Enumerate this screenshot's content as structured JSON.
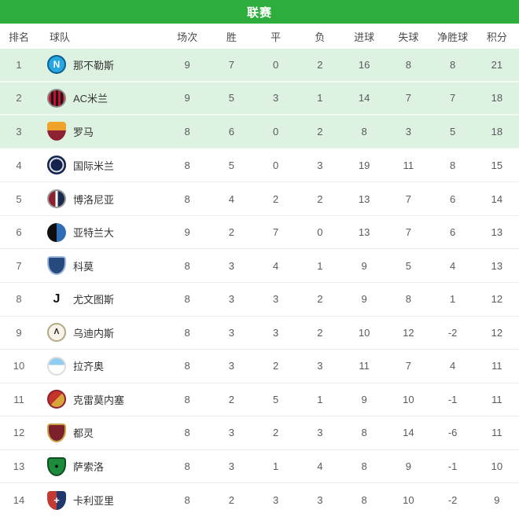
{
  "header": {
    "title": "联赛",
    "bg_color": "#2dae3c",
    "text_color": "#ffffff"
  },
  "table": {
    "columns": [
      {
        "key": "rank",
        "label": "排名"
      },
      {
        "key": "team",
        "label": "球队"
      },
      {
        "key": "played",
        "label": "场次"
      },
      {
        "key": "win",
        "label": "胜"
      },
      {
        "key": "draw",
        "label": "平"
      },
      {
        "key": "loss",
        "label": "负"
      },
      {
        "key": "gf",
        "label": "进球"
      },
      {
        "key": "ga",
        "label": "失球"
      },
      {
        "key": "gd",
        "label": "净胜球"
      },
      {
        "key": "pts",
        "label": "积分"
      }
    ],
    "highlight_bg": "#ddf2e0",
    "rows": [
      {
        "rank": 1,
        "team": "那不勒斯",
        "highlight": true,
        "badge": {
          "icon_name": "napoli-badge-icon",
          "shape": "circle",
          "fill": "solid",
          "colors": [
            "#27a7e0",
            "#0d5d93"
          ],
          "border": "#0d5d93",
          "glyph": "N",
          "glyph_color": "#ffffff",
          "glyph_size": 12
        },
        "stats": {
          "played": 9,
          "win": 7,
          "draw": 0,
          "loss": 2,
          "gf": 16,
          "ga": 8,
          "gd": 8,
          "pts": 21
        }
      },
      {
        "rank": 2,
        "team": "AC米兰",
        "highlight": true,
        "badge": {
          "icon_name": "ac-milan-badge-icon",
          "shape": "circle",
          "fill": "stripes",
          "colors": [
            "#c8102e",
            "#1a1a1a"
          ],
          "border": "#8a8a8a",
          "glyph": "",
          "glyph_color": "",
          "glyph_size": 0
        },
        "stats": {
          "played": 9,
          "win": 5,
          "draw": 3,
          "loss": 1,
          "gf": 14,
          "ga": 7,
          "gd": 7,
          "pts": 18
        }
      },
      {
        "rank": 3,
        "team": "罗马",
        "highlight": true,
        "badge": {
          "icon_name": "roma-badge-icon",
          "shape": "shield",
          "fill": "grad",
          "colors": [
            "#efa32b",
            "#8e2234"
          ],
          "border": "",
          "glyph": "",
          "glyph_color": "",
          "glyph_size": 0
        },
        "stats": {
          "played": 8,
          "win": 6,
          "draw": 0,
          "loss": 2,
          "gf": 8,
          "ga": 3,
          "gd": 5,
          "pts": 18
        }
      },
      {
        "rank": 4,
        "team": "国际米兰",
        "highlight": false,
        "badge": {
          "icon_name": "inter-milan-badge-icon",
          "shape": "circle",
          "fill": "solid",
          "colors": [
            "#16234d",
            "#16234d"
          ],
          "border": "",
          "ring": "#d8dde6",
          "glyph": "",
          "glyph_color": "",
          "glyph_size": 0
        },
        "stats": {
          "played": 8,
          "win": 5,
          "draw": 0,
          "loss": 3,
          "gf": 19,
          "ga": 11,
          "gd": 8,
          "pts": 15
        }
      },
      {
        "rank": 5,
        "team": "博洛尼亚",
        "highlight": false,
        "badge": {
          "icon_name": "bologna-badge-icon",
          "shape": "circle",
          "fill": "halves",
          "colors": [
            "#8c2030",
            "#1b2b4d"
          ],
          "mid": "#ffffff",
          "border": "#9a9a9a",
          "glyph": "",
          "glyph_color": "",
          "glyph_size": 0
        },
        "stats": {
          "played": 8,
          "win": 4,
          "draw": 2,
          "loss": 2,
          "gf": 13,
          "ga": 7,
          "gd": 6,
          "pts": 14
        }
      },
      {
        "rank": 6,
        "team": "亚特兰大",
        "highlight": false,
        "badge": {
          "icon_name": "atalanta-badge-icon",
          "shape": "circle",
          "fill": "halves",
          "colors": [
            "#0e0e0e",
            "#2f6db6"
          ],
          "border": "",
          "glyph": "",
          "glyph_color": "",
          "glyph_size": 0
        },
        "stats": {
          "played": 9,
          "win": 2,
          "draw": 7,
          "loss": 0,
          "gf": 13,
          "ga": 7,
          "gd": 6,
          "pts": 13
        }
      },
      {
        "rank": 7,
        "team": "科莫",
        "highlight": false,
        "badge": {
          "icon_name": "como-badge-icon",
          "shape": "shield",
          "fill": "solid",
          "colors": [
            "#274a7e",
            "#274a7e"
          ],
          "border": "#9db8d8",
          "glyph": "",
          "glyph_color": "",
          "glyph_size": 0
        },
        "stats": {
          "played": 8,
          "win": 3,
          "draw": 4,
          "loss": 1,
          "gf": 9,
          "ga": 5,
          "gd": 4,
          "pts": 13
        }
      },
      {
        "rank": 8,
        "team": "尤文图斯",
        "highlight": false,
        "badge": {
          "icon_name": "juventus-badge-icon",
          "shape": "circle",
          "fill": "solid",
          "colors": [
            "#ffffff",
            "#ffffff"
          ],
          "border": "",
          "glyph": "J",
          "glyph_color": "#141414",
          "glyph_size": 16
        },
        "stats": {
          "played": 8,
          "win": 3,
          "draw": 3,
          "loss": 2,
          "gf": 9,
          "ga": 8,
          "gd": 1,
          "pts": 12
        }
      },
      {
        "rank": 9,
        "team": "乌迪内斯",
        "highlight": false,
        "badge": {
          "icon_name": "udinese-badge-icon",
          "shape": "circle",
          "fill": "solid",
          "colors": [
            "#f7f3e9",
            "#f7f3e9"
          ],
          "border": "#b3a784",
          "glyph": "Λ",
          "glyph_color": "#1a1a1a",
          "glyph_size": 10
        },
        "stats": {
          "played": 8,
          "win": 3,
          "draw": 3,
          "loss": 2,
          "gf": 10,
          "ga": 12,
          "gd": -2,
          "pts": 12
        }
      },
      {
        "rank": 10,
        "team": "拉齐奥",
        "highlight": false,
        "badge": {
          "icon_name": "lazio-badge-icon",
          "shape": "circle",
          "fill": "top",
          "colors": [
            "#ffffff",
            "#8fcdf0"
          ],
          "border": "#dcdcdc",
          "glyph": "",
          "glyph_color": "",
          "glyph_size": 0
        },
        "stats": {
          "played": 8,
          "win": 3,
          "draw": 2,
          "loss": 3,
          "gf": 11,
          "ga": 7,
          "gd": 4,
          "pts": 11
        }
      },
      {
        "rank": 11,
        "team": "克雷莫内塞",
        "highlight": false,
        "badge": {
          "icon_name": "cremonese-badge-icon",
          "shape": "circle",
          "fill": "diagonal",
          "colors": [
            "#c5342c",
            "#d8a43c"
          ],
          "border": "#8c2030",
          "glyph": "",
          "glyph_color": "",
          "glyph_size": 0
        },
        "stats": {
          "played": 8,
          "win": 2,
          "draw": 5,
          "loss": 1,
          "gf": 9,
          "ga": 10,
          "gd": -1,
          "pts": 11
        }
      },
      {
        "rank": 12,
        "team": "都灵",
        "highlight": false,
        "badge": {
          "icon_name": "torino-badge-icon",
          "shape": "shield",
          "fill": "solid",
          "colors": [
            "#7c202e",
            "#7c202e"
          ],
          "border": "#c9a54a",
          "glyph": "",
          "glyph_color": "",
          "glyph_size": 0
        },
        "stats": {
          "played": 8,
          "win": 3,
          "draw": 2,
          "loss": 3,
          "gf": 8,
          "ga": 14,
          "gd": -6,
          "pts": 11
        }
      },
      {
        "rank": 13,
        "team": "萨索洛",
        "highlight": false,
        "badge": {
          "icon_name": "sassuolo-badge-icon",
          "shape": "shield",
          "fill": "solid",
          "colors": [
            "#1d8a3c",
            "#1d8a3c"
          ],
          "border": "#114f22",
          "glyph": "●",
          "glyph_color": "#0c0c0c",
          "glyph_size": 9
        },
        "stats": {
          "played": 8,
          "win": 3,
          "draw": 1,
          "loss": 4,
          "gf": 8,
          "ga": 9,
          "gd": -1,
          "pts": 10
        }
      },
      {
        "rank": 14,
        "team": "卡利亚里",
        "highlight": false,
        "badge": {
          "icon_name": "cagliari-badge-icon",
          "shape": "shield",
          "fill": "halves",
          "colors": [
            "#c23b32",
            "#20386b"
          ],
          "border": "",
          "glyph": "+",
          "glyph_color": "#ffffff",
          "glyph_size": 13
        },
        "stats": {
          "played": 8,
          "win": 2,
          "draw": 3,
          "loss": 3,
          "gf": 8,
          "ga": 10,
          "gd": -2,
          "pts": 9
        }
      }
    ]
  }
}
